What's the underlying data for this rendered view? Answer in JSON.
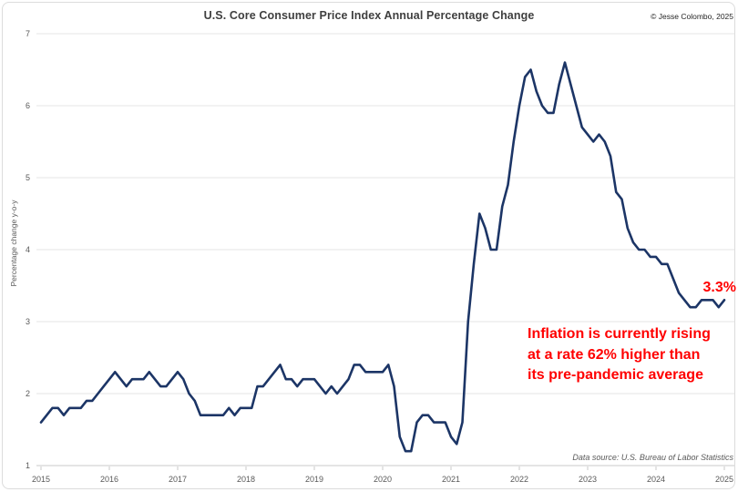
{
  "header": {
    "title": "U.S. Core Consumer Price Index Annual Percentage Change",
    "copyright": "© Jesse Colombo, 2025"
  },
  "chart_data": {
    "type": "line",
    "title": "U.S. Core Consumer Price Index Annual Percentage Change",
    "xlabel": "",
    "ylabel": "Percentage change y-o-y",
    "x_range": [
      "2015-01",
      "2025-01"
    ],
    "ylim": [
      1,
      7
    ],
    "x_tick_labels": [
      "2015",
      "2016",
      "2017",
      "2018",
      "2019",
      "2020",
      "2021",
      "2022",
      "2023",
      "2024",
      "2025"
    ],
    "y_tick_labels": [
      1,
      2,
      3,
      4,
      5,
      6,
      7
    ],
    "grid": "horizontal-only",
    "legend": "none",
    "line_color": "#1c3566",
    "series": [
      {
        "name": "U.S. Core CPI annual percentage change",
        "x_start": "2015-01",
        "x_step_months": 1,
        "values": [
          1.6,
          1.7,
          1.8,
          1.8,
          1.7,
          1.8,
          1.8,
          1.8,
          1.9,
          1.9,
          2.0,
          2.1,
          2.2,
          2.3,
          2.2,
          2.1,
          2.2,
          2.2,
          2.2,
          2.3,
          2.2,
          2.1,
          2.1,
          2.2,
          2.3,
          2.2,
          2.0,
          1.9,
          1.7,
          1.7,
          1.7,
          1.7,
          1.7,
          1.8,
          1.7,
          1.8,
          1.8,
          1.8,
          2.1,
          2.1,
          2.2,
          2.3,
          2.4,
          2.2,
          2.2,
          2.1,
          2.2,
          2.2,
          2.2,
          2.1,
          2.0,
          2.1,
          2.0,
          2.1,
          2.2,
          2.4,
          2.4,
          2.3,
          2.3,
          2.3,
          2.3,
          2.4,
          2.1,
          1.4,
          1.2,
          1.2,
          1.6,
          1.7,
          1.7,
          1.6,
          1.6,
          1.6,
          1.4,
          1.3,
          1.6,
          3.0,
          3.8,
          4.5,
          4.3,
          4.0,
          4.0,
          4.6,
          4.9,
          5.5,
          6.0,
          6.4,
          6.5,
          6.2,
          6.0,
          5.9,
          5.9,
          6.3,
          6.6,
          6.3,
          6.0,
          5.7,
          5.6,
          5.5,
          5.6,
          5.5,
          5.3,
          4.8,
          4.7,
          4.3,
          4.1,
          4.0,
          4.0,
          3.9,
          3.9,
          3.8,
          3.8,
          3.6,
          3.4,
          3.3,
          3.2,
          3.2,
          3.3,
          3.3,
          3.3,
          3.2,
          3.3
        ]
      }
    ],
    "annotations": {
      "color": "#ff0000",
      "latest_value_label": "3.3%",
      "note_lines": [
        "Inflation is currently rising",
        "at a rate 62% higher than",
        "its pre-pandemic average"
      ]
    },
    "source_note": "Data source: U.S. Bureau of Labor Statistics"
  },
  "style": {
    "gridline_color": "#e6e6e6",
    "axis_color": "#c9c9c9",
    "tick_label_color": "#595959"
  }
}
